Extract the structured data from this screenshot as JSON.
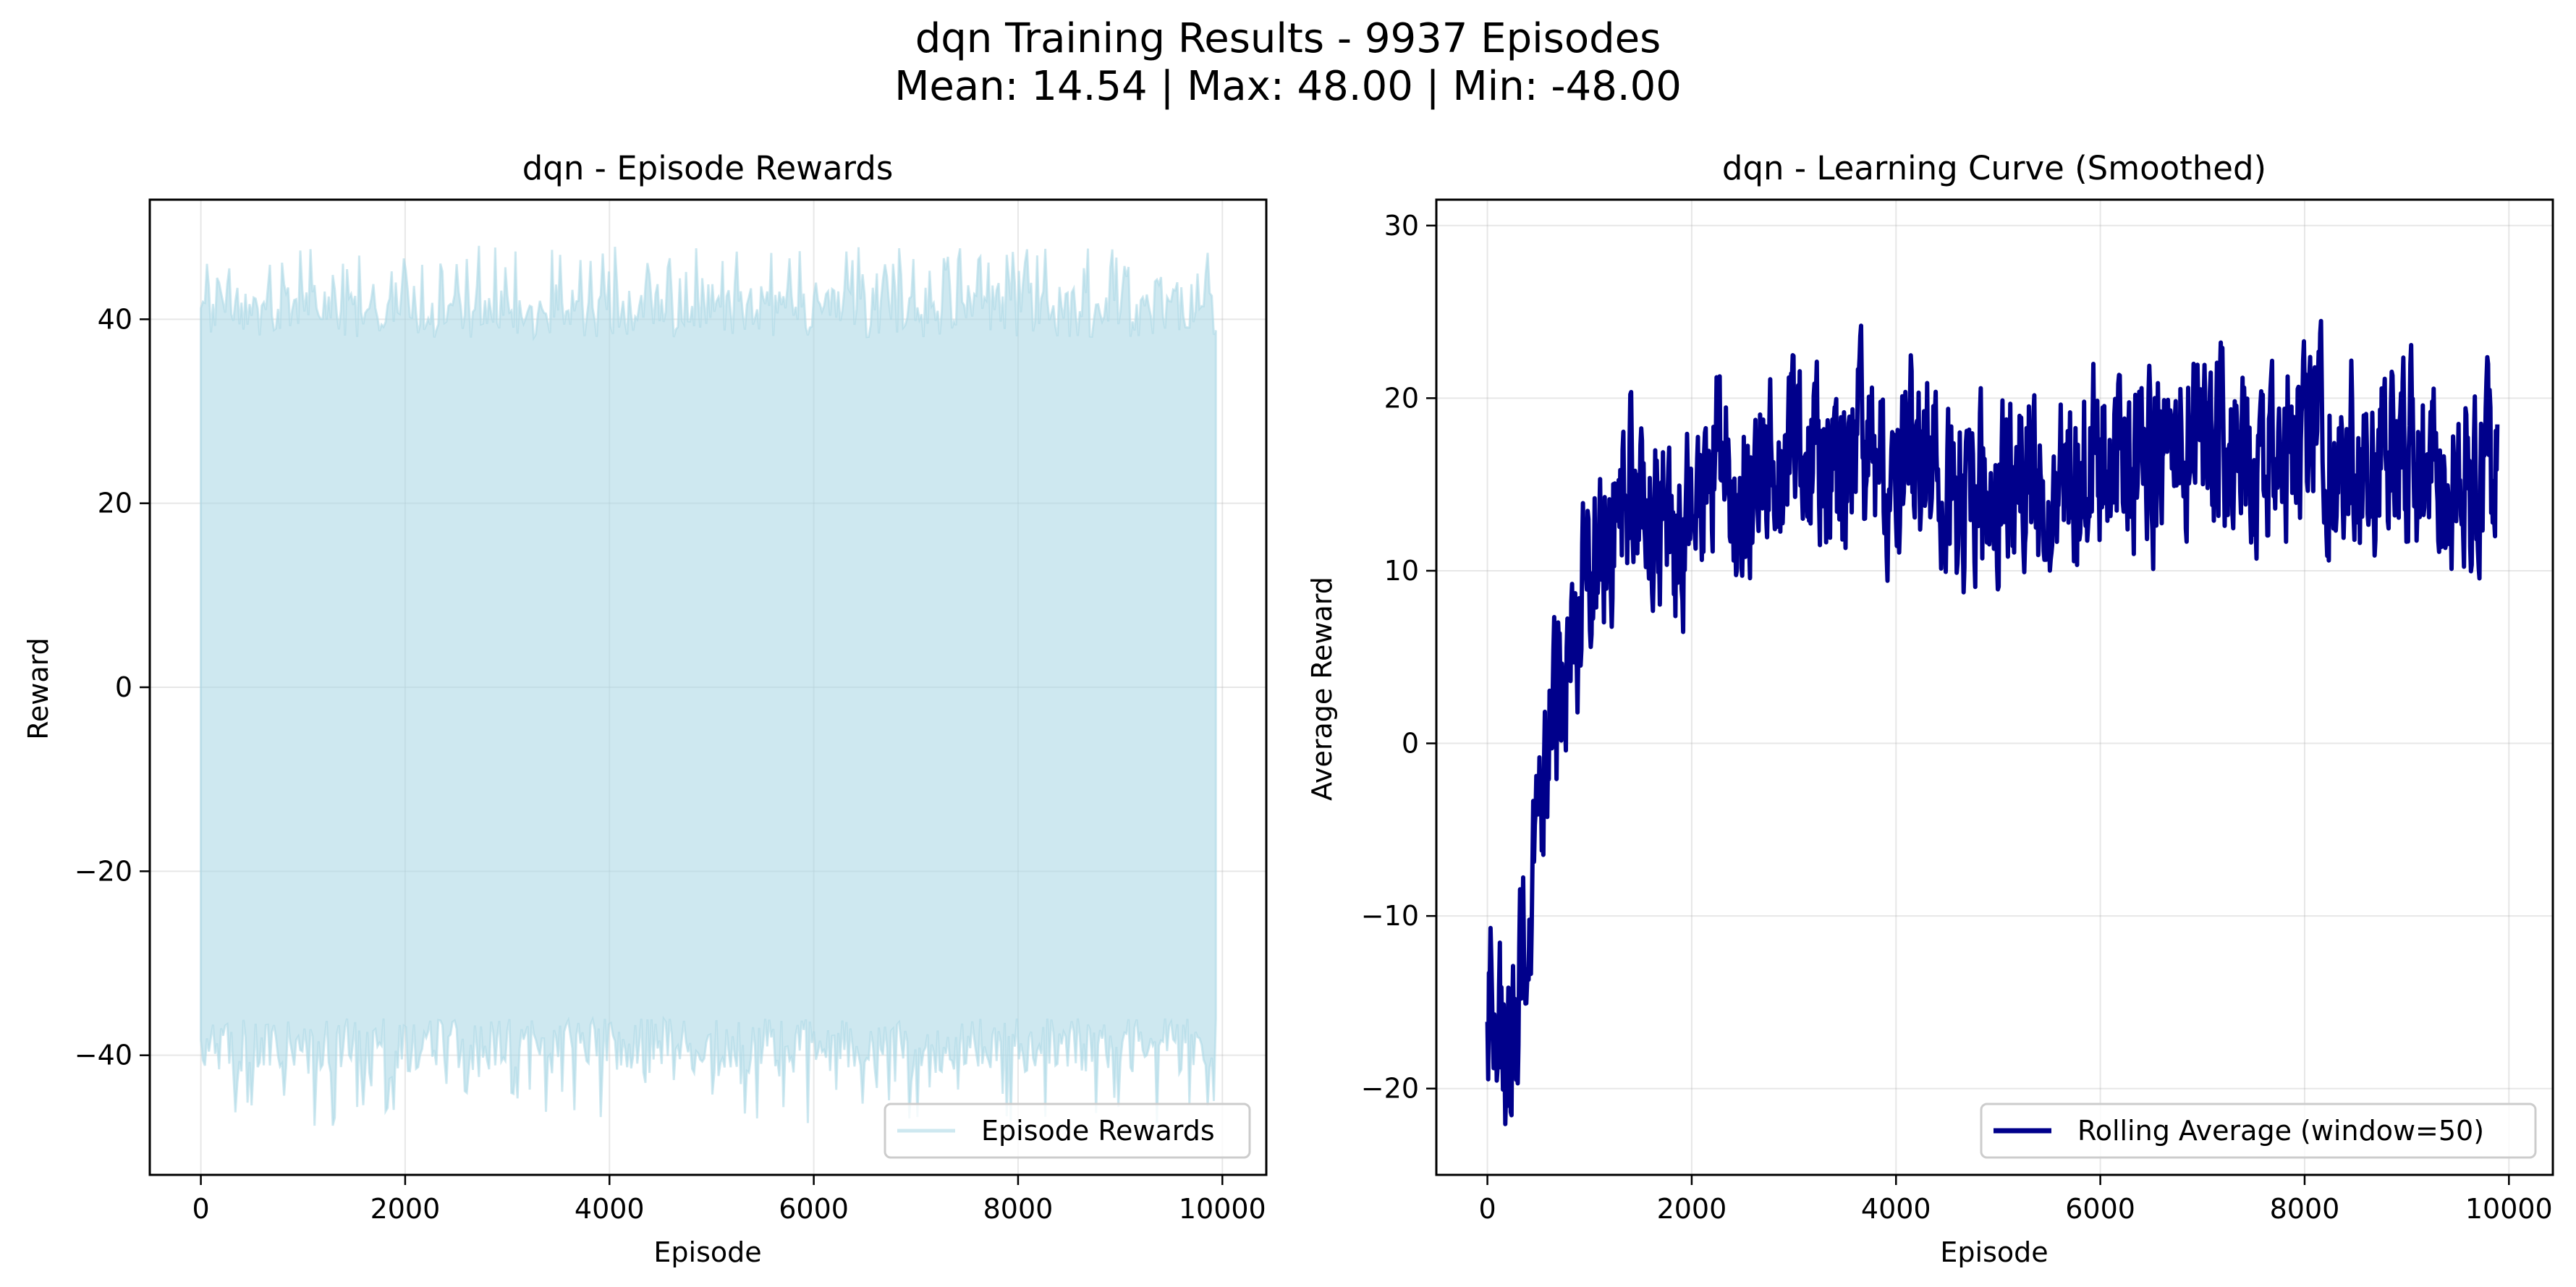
{
  "figure": {
    "title_line1": "dqn Training Results - 9937 Episodes",
    "title_line2": "Mean: 14.54 | Max: 48.00 | Min: -48.00"
  },
  "chart_data": [
    {
      "type": "area",
      "title": "dqn - Episode Rewards",
      "xlabel": "Episode",
      "ylabel": "Reward",
      "xlim": [
        -500,
        10430
      ],
      "ylim": [
        -53,
        53
      ],
      "xticks": [
        0,
        2000,
        4000,
        6000,
        8000,
        10000
      ],
      "yticks": [
        -40,
        -20,
        0,
        20,
        40
      ],
      "grid": true,
      "legend": {
        "position": "lower-right",
        "entries": [
          "Episode Rewards"
        ]
      },
      "series": [
        {
          "name": "Episode Rewards",
          "color": "#add8e6",
          "alpha": 0.6,
          "x_range": [
            0,
            9936
          ],
          "typical_upper": [
            38,
            44
          ],
          "typical_lower": [
            -42,
            -36
          ],
          "max": 48,
          "min": -48,
          "mean": 14.54
        }
      ]
    },
    {
      "type": "line",
      "title": "dqn - Learning Curve (Smoothed)",
      "xlabel": "Episode",
      "ylabel": "Average Reward",
      "xlim": [
        -500,
        10430
      ],
      "ylim": [
        -25,
        31.5
      ],
      "xticks": [
        0,
        2000,
        4000,
        6000,
        8000,
        10000
      ],
      "yticks": [
        -20,
        -10,
        0,
        10,
        20,
        30
      ],
      "grid": true,
      "legend": {
        "position": "lower-right",
        "entries": [
          "Rolling Average (window=50)"
        ]
      },
      "series": [
        {
          "name": "Rolling Average (window=50)",
          "color": "#00008b",
          "x": [
            0,
            100,
            200,
            300,
            400,
            500,
            600,
            700,
            800,
            900,
            1000,
            1200,
            1400,
            1600,
            1800,
            2000,
            2200,
            2400,
            2600,
            2800,
            3000,
            3200,
            3400,
            3600,
            3800,
            4000,
            4200,
            4400,
            4600,
            4800,
            5000,
            5200,
            5400,
            5600,
            5800,
            6000,
            6200,
            6400,
            6600,
            6800,
            7000,
            7200,
            7400,
            7600,
            7800,
            8000,
            8200,
            8400,
            8600,
            8800,
            9000,
            9200,
            9400,
            9600,
            9887
          ],
          "y": [
            -16,
            -17,
            -19,
            -15,
            -10,
            -6,
            -1,
            3,
            6,
            8,
            10,
            13,
            15,
            14,
            12,
            12,
            17,
            16,
            15,
            17,
            18,
            16,
            15,
            17,
            16,
            16,
            17,
            15,
            13,
            14,
            15,
            16,
            15,
            16,
            16,
            17,
            16,
            17,
            16,
            17,
            18,
            18,
            17,
            17,
            17,
            19,
            18,
            17,
            17,
            16,
            17,
            16,
            15,
            15,
            16
          ],
          "y_max": 29,
          "y_min": -22.5
        }
      ]
    }
  ]
}
